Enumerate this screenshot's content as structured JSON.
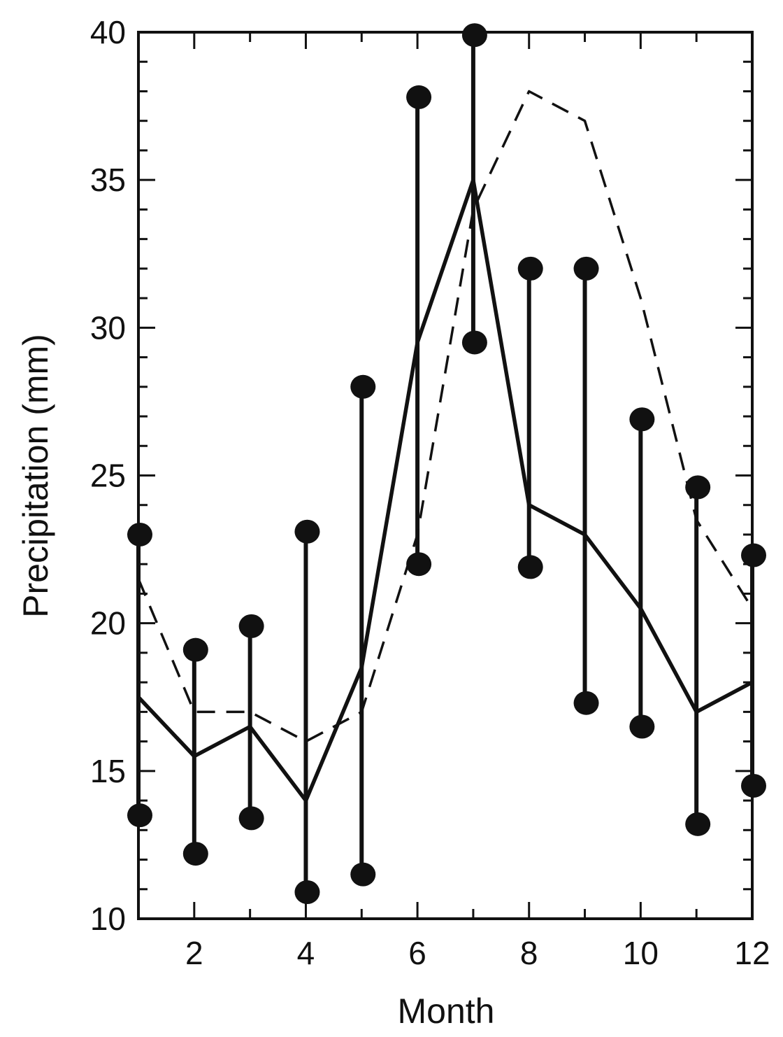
{
  "chart_data": {
    "type": "line",
    "title": "",
    "xlabel": "Month",
    "ylabel": "Precipitation (mm)",
    "xlim": [
      1,
      12
    ],
    "ylim": [
      10,
      40
    ],
    "xticks": [
      2,
      4,
      6,
      8,
      10,
      12
    ],
    "yticks": [
      10,
      15,
      20,
      25,
      30,
      35,
      40
    ],
    "grid": false,
    "legend": "none",
    "colors": {
      "ink": "#111111",
      "background": "#ffffff"
    },
    "x": [
      1,
      2,
      3,
      4,
      5,
      6,
      7,
      8,
      9,
      10,
      11,
      12
    ],
    "series": [
      {
        "style": "solid",
        "values": [
          17.5,
          15.5,
          16.5,
          14.0,
          18.5,
          29.5,
          35.0,
          24.0,
          23.0,
          20.5,
          17.0,
          18.0
        ]
      },
      {
        "style": "dashed",
        "values": [
          21.5,
          17.0,
          17.0,
          16.0,
          17.0,
          23.0,
          34.0,
          38.0,
          37.0,
          31.0,
          23.5,
          20.5
        ]
      }
    ],
    "ranges": {
      "style": "vertical bar with filled circle at each end",
      "min": [
        13.5,
        12.2,
        13.4,
        10.9,
        11.5,
        22.0,
        29.5,
        21.9,
        17.3,
        16.5,
        13.2,
        14.5
      ],
      "max": [
        23.0,
        19.1,
        19.9,
        23.1,
        28.0,
        37.8,
        39.9,
        32.0,
        32.0,
        26.9,
        24.6,
        22.3
      ]
    }
  }
}
